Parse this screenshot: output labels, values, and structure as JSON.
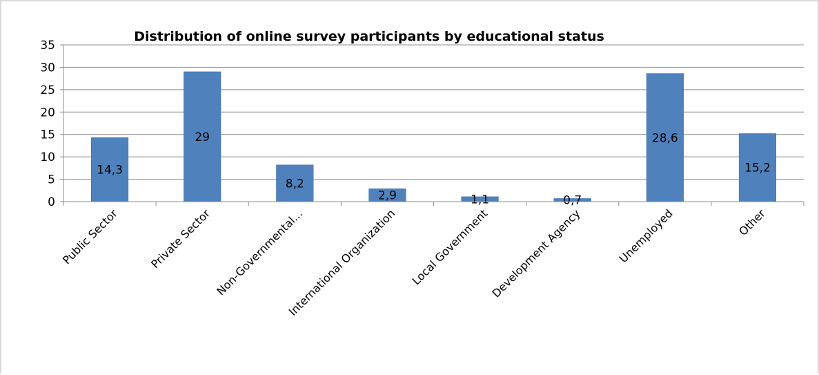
{
  "chart_data": {
    "type": "bar",
    "title": "Distribution of online survey participants by educational status",
    "categories": [
      "Public Sector",
      "Private Sector",
      "Non-Governmental...",
      "International Organization",
      "Local Government",
      "Development Agency",
      "Unemployed",
      "Other"
    ],
    "values": [
      14.3,
      29,
      8.2,
      2.9,
      1.1,
      0.7,
      28.6,
      15.2
    ],
    "value_labels": [
      "14,3",
      "29",
      "8,2",
      "2,9",
      "1,1",
      "0,7",
      "28,6",
      "15,2"
    ],
    "y_ticks": [
      "0",
      "5",
      "10",
      "15",
      "20",
      "25",
      "30",
      "35"
    ],
    "ylim": [
      0,
      35
    ],
    "grid": true,
    "legend": "none",
    "colors": {
      "bar": "#4f81bd",
      "bar_edge": "#3a6aa3",
      "grid": "#8c8c8c",
      "axis": "#8c8c8c"
    }
  }
}
